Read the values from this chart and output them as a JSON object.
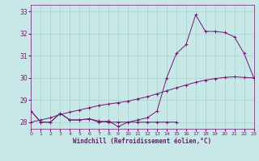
{
  "xlabel": "Windchill (Refroidissement éolien,°C)",
  "background_color": "#c8e8e8",
  "grid_color": "#a8d0d0",
  "line_color": "#6e1a6e",
  "xlim": [
    0,
    23
  ],
  "ylim": [
    27.7,
    33.3
  ],
  "yticks": [
    28,
    29,
    30,
    31,
    32,
    33
  ],
  "hours": [
    0,
    1,
    2,
    3,
    4,
    5,
    6,
    7,
    8,
    9,
    10,
    11,
    12,
    13,
    14,
    15,
    16,
    17,
    18,
    19,
    20,
    21,
    22,
    23
  ],
  "line_flat": [
    28.5,
    28.0,
    28.0,
    28.4,
    28.1,
    28.1,
    28.15,
    28.0,
    28.05,
    27.8,
    28.0,
    28.0,
    28.0,
    28.0,
    28.0,
    28.0,
    null,
    null,
    null,
    null,
    null,
    null,
    null,
    null
  ],
  "line_curve": [
    28.5,
    28.0,
    28.0,
    28.4,
    28.1,
    28.1,
    28.15,
    28.05,
    28.0,
    28.0,
    28.0,
    28.1,
    28.2,
    28.5,
    30.0,
    31.1,
    31.5,
    32.85,
    32.1,
    32.1,
    32.05,
    31.85,
    31.1,
    30.0
  ],
  "line_diag": [
    28.0,
    28.1,
    28.2,
    28.35,
    28.45,
    28.55,
    28.65,
    28.75,
    28.82,
    28.88,
    28.95,
    29.05,
    29.15,
    29.28,
    29.42,
    29.55,
    29.68,
    29.8,
    29.9,
    29.97,
    30.02,
    30.05,
    30.02,
    30.0
  ]
}
